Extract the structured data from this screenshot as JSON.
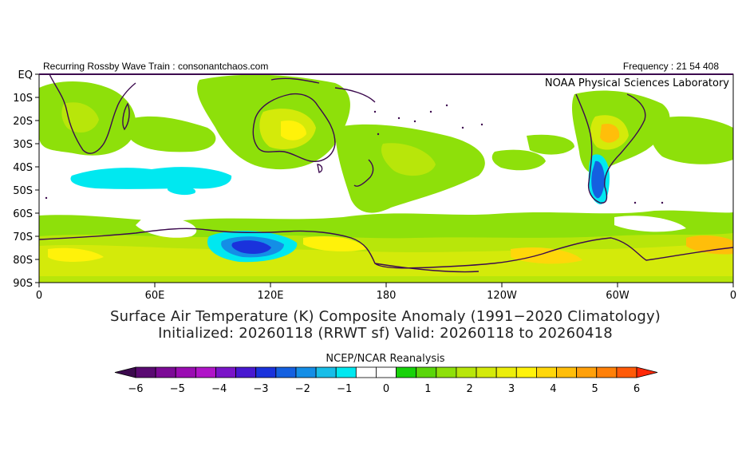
{
  "header": {
    "left": "Recurring Rossby Wave Train : consonantchaos.com",
    "right": "Frequency : 21 54 408",
    "agency": "NOAA Physical Sciences Laboratory"
  },
  "map": {
    "y_labels": [
      "EQ",
      "10S",
      "20S",
      "30S",
      "40S",
      "50S",
      "60S",
      "70S",
      "80S",
      "90S"
    ],
    "x_labels": [
      "0",
      "60E",
      "120E",
      "180",
      "120W",
      "60W",
      "0"
    ],
    "lat_range": [
      0,
      -90
    ],
    "lon_range_east": [
      0,
      360
    ],
    "variable": "Surface Air Temperature anomaly (K)",
    "notable_anomalies": [
      {
        "region": "East Antarctic coast near 110E 75S",
        "value_k": -3
      },
      {
        "region": "Southern Patagonia",
        "value_k": -2.5
      },
      {
        "region": "Southern Indian Ocean 40-50S",
        "value_k": -0.5
      },
      {
        "region": "Interior Australia",
        "value_k": 1.5
      },
      {
        "region": "Northern Argentina / Paraguay",
        "value_k": 3
      },
      {
        "region": "Antarctic interior 60W-0",
        "value_k": 2.5
      }
    ]
  },
  "title": {
    "line1": "Surface Air Temperature (K) Composite Anomaly (1991−2020 Climatology)",
    "line2": "Initialized: 20260118 (RRWT sf) Valid: 20260118 to 20260418"
  },
  "source": "NCEP/NCAR Reanalysis",
  "colorbar": {
    "labels": [
      "−6",
      "−5",
      "−4",
      "−3",
      "−2",
      "−1",
      "0",
      "1",
      "2",
      "3",
      "4",
      "5",
      "6"
    ],
    "colors": [
      "#3c0a4e",
      "#5a0a72",
      "#7c0a96",
      "#9a0cb2",
      "#b014c8",
      "#7a14c8",
      "#4818d0",
      "#1a32dc",
      "#1460e0",
      "#148ee6",
      "#18bee8",
      "#00e8f0",
      "#ffffff",
      "#ffffff",
      "#18d20a",
      "#5ad60a",
      "#8ee00a",
      "#b8e60a",
      "#d4ea0a",
      "#ecee0a",
      "#fff20a",
      "#ffd70a",
      "#ffbe0a",
      "#ffa00a",
      "#ff8008",
      "#ff5a08",
      "#ff2808"
    ]
  }
}
